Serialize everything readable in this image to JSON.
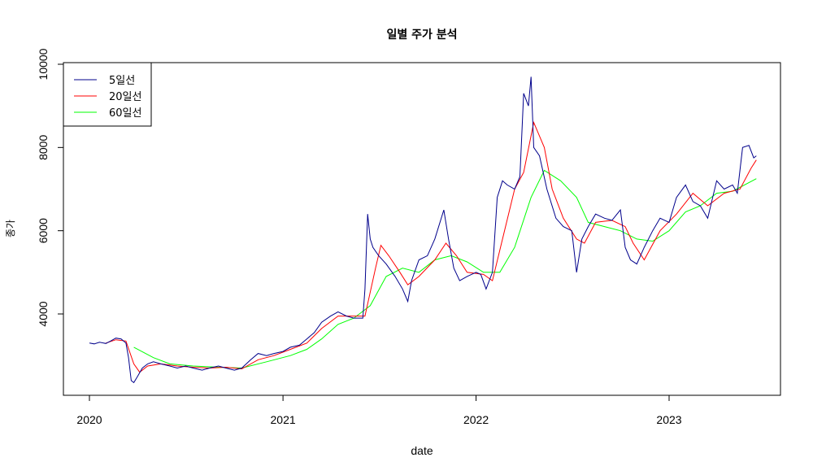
{
  "chart_data": {
    "type": "line",
    "title": "일별 주가 분석",
    "xlabel": "date",
    "ylabel": "종가",
    "x_ticks": [
      "2020",
      "2021",
      "2022",
      "2023"
    ],
    "y_ticks": [
      "4000",
      "6000",
      "8000",
      "10000"
    ],
    "xlim": [
      "2020-01-01",
      "2023-06-30"
    ],
    "ylim": [
      2200,
      10000
    ],
    "legend_position": "top-left",
    "colors": {
      "ma5": "#00008B",
      "ma20": "#FF0000",
      "ma60": "#00FF00"
    },
    "series": [
      {
        "name": "5일선",
        "color": "#00008B",
        "points": [
          [
            "2020-01-01",
            3300
          ],
          [
            "2020-01-10",
            3280
          ],
          [
            "2020-01-20",
            3320
          ],
          [
            "2020-02-01",
            3290
          ],
          [
            "2020-02-10",
            3350
          ],
          [
            "2020-02-20",
            3420
          ],
          [
            "2020-03-01",
            3400
          ],
          [
            "2020-03-10",
            3300
          ],
          [
            "2020-03-15",
            2950
          ],
          [
            "2020-03-20",
            2400
          ],
          [
            "2020-03-25",
            2350
          ],
          [
            "2020-04-01",
            2500
          ],
          [
            "2020-04-10",
            2700
          ],
          [
            "2020-04-20",
            2800
          ],
          [
            "2020-05-01",
            2850
          ],
          [
            "2020-05-15",
            2800
          ],
          [
            "2020-06-01",
            2750
          ],
          [
            "2020-06-15",
            2700
          ],
          [
            "2020-07-01",
            2750
          ],
          [
            "2020-07-15",
            2700
          ],
          [
            "2020-08-01",
            2650
          ],
          [
            "2020-08-15",
            2700
          ],
          [
            "2020-09-01",
            2750
          ],
          [
            "2020-09-15",
            2700
          ],
          [
            "2020-10-01",
            2650
          ],
          [
            "2020-10-15",
            2700
          ],
          [
            "2020-11-01",
            2900
          ],
          [
            "2020-11-15",
            3050
          ],
          [
            "2020-12-01",
            3000
          ],
          [
            "2020-12-15",
            3050
          ],
          [
            "2021-01-01",
            3100
          ],
          [
            "2021-01-15",
            3200
          ],
          [
            "2021-02-01",
            3250
          ],
          [
            "2021-02-15",
            3400
          ],
          [
            "2021-03-01",
            3550
          ],
          [
            "2021-03-15",
            3800
          ],
          [
            "2021-04-01",
            3950
          ],
          [
            "2021-04-15",
            4050
          ],
          [
            "2021-05-01",
            3950
          ],
          [
            "2021-05-15",
            3900
          ],
          [
            "2021-06-01",
            3900
          ],
          [
            "2021-06-05",
            4600
          ],
          [
            "2021-06-10",
            6400
          ],
          [
            "2021-06-15",
            5800
          ],
          [
            "2021-06-20",
            5600
          ],
          [
            "2021-07-01",
            5400
          ],
          [
            "2021-07-15",
            5200
          ],
          [
            "2021-08-01",
            4900
          ],
          [
            "2021-08-15",
            4600
          ],
          [
            "2021-08-25",
            4300
          ],
          [
            "2021-09-01",
            4800
          ],
          [
            "2021-09-15",
            5300
          ],
          [
            "2021-10-01",
            5400
          ],
          [
            "2021-10-15",
            5800
          ],
          [
            "2021-11-01",
            6500
          ],
          [
            "2021-11-10",
            5800
          ],
          [
            "2021-11-20",
            5100
          ],
          [
            "2021-12-01",
            4800
          ],
          [
            "2021-12-15",
            4900
          ],
          [
            "2022-01-01",
            5000
          ],
          [
            "2022-01-10",
            4950
          ],
          [
            "2022-01-20",
            4600
          ],
          [
            "2022-02-01",
            5000
          ],
          [
            "2022-02-10",
            6800
          ],
          [
            "2022-02-20",
            7200
          ],
          [
            "2022-03-01",
            7100
          ],
          [
            "2022-03-15",
            7000
          ],
          [
            "2022-03-25",
            7300
          ],
          [
            "2022-04-01",
            9300
          ],
          [
            "2022-04-10",
            9000
          ],
          [
            "2022-04-15",
            9700
          ],
          [
            "2022-04-20",
            8000
          ],
          [
            "2022-05-01",
            7800
          ],
          [
            "2022-05-15",
            7000
          ],
          [
            "2022-06-01",
            6300
          ],
          [
            "2022-06-15",
            6100
          ],
          [
            "2022-07-01",
            6000
          ],
          [
            "2022-07-10",
            5000
          ],
          [
            "2022-07-20",
            5800
          ],
          [
            "2022-08-01",
            6100
          ],
          [
            "2022-08-15",
            6400
          ],
          [
            "2022-09-01",
            6300
          ],
          [
            "2022-09-15",
            6250
          ],
          [
            "2022-10-01",
            6500
          ],
          [
            "2022-10-10",
            5600
          ],
          [
            "2022-10-20",
            5300
          ],
          [
            "2022-11-01",
            5200
          ],
          [
            "2022-11-15",
            5600
          ],
          [
            "2022-12-01",
            6000
          ],
          [
            "2022-12-15",
            6300
          ],
          [
            "2023-01-01",
            6200
          ],
          [
            "2023-01-15",
            6800
          ],
          [
            "2023-02-01",
            7100
          ],
          [
            "2023-02-15",
            6700
          ],
          [
            "2023-03-01",
            6600
          ],
          [
            "2023-03-15",
            6300
          ],
          [
            "2023-04-01",
            7200
          ],
          [
            "2023-04-15",
            7000
          ],
          [
            "2023-05-01",
            7100
          ],
          [
            "2023-05-10",
            6900
          ],
          [
            "2023-05-20",
            8000
          ],
          [
            "2023-06-01",
            8050
          ],
          [
            "2023-06-10",
            7750
          ],
          [
            "2023-06-15",
            7800
          ]
        ]
      },
      {
        "name": "20일선",
        "color": "#FF0000",
        "points": [
          [
            "2020-02-01",
            3300
          ],
          [
            "2020-02-20",
            3380
          ],
          [
            "2020-03-10",
            3350
          ],
          [
            "2020-03-25",
            2800
          ],
          [
            "2020-04-05",
            2600
          ],
          [
            "2020-04-20",
            2750
          ],
          [
            "2020-05-15",
            2800
          ],
          [
            "2020-06-15",
            2750
          ],
          [
            "2020-07-15",
            2720
          ],
          [
            "2020-08-15",
            2700
          ],
          [
            "2020-09-15",
            2720
          ],
          [
            "2020-10-15",
            2680
          ],
          [
            "2020-11-15",
            2900
          ],
          [
            "2020-12-15",
            3000
          ],
          [
            "2021-01-15",
            3150
          ],
          [
            "2021-02-15",
            3300
          ],
          [
            "2021-03-15",
            3650
          ],
          [
            "2021-04-15",
            3950
          ],
          [
            "2021-05-15",
            3950
          ],
          [
            "2021-06-05",
            3950
          ],
          [
            "2021-06-25",
            5100
          ],
          [
            "2021-07-05",
            5650
          ],
          [
            "2021-07-20",
            5400
          ],
          [
            "2021-08-10",
            5000
          ],
          [
            "2021-08-25",
            4700
          ],
          [
            "2021-09-15",
            4900
          ],
          [
            "2021-10-15",
            5300
          ],
          [
            "2021-11-05",
            5700
          ],
          [
            "2021-11-25",
            5400
          ],
          [
            "2021-12-15",
            5000
          ],
          [
            "2022-01-15",
            4950
          ],
          [
            "2022-02-01",
            4800
          ],
          [
            "2022-02-20",
            5800
          ],
          [
            "2022-03-15",
            7000
          ],
          [
            "2022-04-01",
            7400
          ],
          [
            "2022-04-20",
            8600
          ],
          [
            "2022-05-10",
            8000
          ],
          [
            "2022-05-25",
            7000
          ],
          [
            "2022-06-15",
            6300
          ],
          [
            "2022-07-10",
            5800
          ],
          [
            "2022-07-25",
            5700
          ],
          [
            "2022-08-15",
            6200
          ],
          [
            "2022-09-15",
            6250
          ],
          [
            "2022-10-10",
            6100
          ],
          [
            "2022-10-25",
            5700
          ],
          [
            "2022-11-15",
            5300
          ],
          [
            "2022-12-15",
            6000
          ],
          [
            "2023-01-15",
            6400
          ],
          [
            "2023-02-15",
            6900
          ],
          [
            "2023-03-15",
            6600
          ],
          [
            "2023-04-15",
            6900
          ],
          [
            "2023-05-15",
            7000
          ],
          [
            "2023-06-05",
            7500
          ],
          [
            "2023-06-15",
            7700
          ]
        ]
      },
      {
        "name": "60일선",
        "color": "#00FF00",
        "points": [
          [
            "2020-03-25",
            3200
          ],
          [
            "2020-05-01",
            2950
          ],
          [
            "2020-06-01",
            2800
          ],
          [
            "2020-07-15",
            2750
          ],
          [
            "2020-09-01",
            2720
          ],
          [
            "2020-10-15",
            2700
          ],
          [
            "2020-12-01",
            2850
          ],
          [
            "2021-01-15",
            3000
          ],
          [
            "2021-02-15",
            3150
          ],
          [
            "2021-03-15",
            3400
          ],
          [
            "2021-04-15",
            3750
          ],
          [
            "2021-05-15",
            3900
          ],
          [
            "2021-06-15",
            4200
          ],
          [
            "2021-07-15",
            4900
          ],
          [
            "2021-08-15",
            5100
          ],
          [
            "2021-09-15",
            5000
          ],
          [
            "2021-10-15",
            5300
          ],
          [
            "2021-11-15",
            5400
          ],
          [
            "2021-12-15",
            5250
          ],
          [
            "2022-01-15",
            5000
          ],
          [
            "2022-02-15",
            5000
          ],
          [
            "2022-03-15",
            5600
          ],
          [
            "2022-04-15",
            6800
          ],
          [
            "2022-05-10",
            7450
          ],
          [
            "2022-06-10",
            7200
          ],
          [
            "2022-07-10",
            6800
          ],
          [
            "2022-08-01",
            6200
          ],
          [
            "2022-09-01",
            6100
          ],
          [
            "2022-10-01",
            6000
          ],
          [
            "2022-11-01",
            5800
          ],
          [
            "2022-12-01",
            5750
          ],
          [
            "2023-01-01",
            6000
          ],
          [
            "2023-02-01",
            6450
          ],
          [
            "2023-03-01",
            6600
          ],
          [
            "2023-04-01",
            6900
          ],
          [
            "2023-05-01",
            6950
          ],
          [
            "2023-06-15",
            7250
          ]
        ]
      }
    ]
  }
}
